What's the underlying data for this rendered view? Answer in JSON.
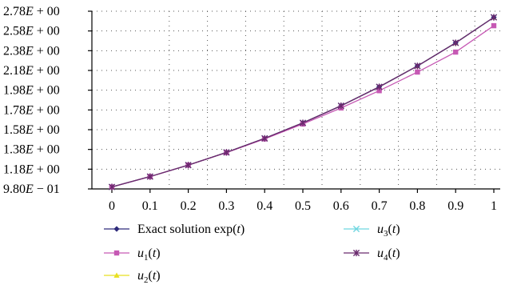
{
  "chart_data": {
    "type": "line",
    "x": [
      0,
      0.1,
      0.2,
      0.3,
      0.4,
      0.5,
      0.6,
      0.7,
      0.8,
      0.9,
      1
    ],
    "x_tick_labels": [
      "0",
      "0.1",
      "0.2",
      "0.3",
      "0.4",
      "0.5",
      "0.6",
      "0.7",
      "0.8",
      "0.9",
      "1"
    ],
    "y_tick_values": [
      0.98,
      1.18,
      1.38,
      1.58,
      1.78,
      1.98,
      2.18,
      2.38,
      2.58,
      2.78
    ],
    "y_tick_labels": [
      "9.80E − 01",
      "1.18E + 00",
      "1.38E + 00",
      "1.58E + 00",
      "1.78E + 00",
      "1.98E + 00",
      "2.18E + 00",
      "2.38E + 00",
      "2.58E + 00",
      "2.78E + 00"
    ],
    "ylim": [
      0.98,
      2.78
    ],
    "xlim": [
      0,
      1
    ],
    "grid": true,
    "legend_position": "bottom",
    "series": [
      {
        "name": "Exact solution exp(t)",
        "color": "#2e2a7a",
        "marker": "diamond",
        "values": [
          1.0,
          1.10517,
          1.2214,
          1.34986,
          1.49182,
          1.64872,
          1.82212,
          2.01375,
          2.22554,
          2.4596,
          2.71828
        ]
      },
      {
        "name": "u1(t)",
        "color": "#c659b4",
        "marker": "square",
        "values": [
          1.0,
          1.105,
          1.221,
          1.3483,
          1.4867,
          1.6375,
          1.8,
          1.975,
          2.1636,
          2.366,
          2.6333
        ]
      },
      {
        "name": "u2(t)",
        "color": "#e8e020",
        "marker": "triangle",
        "values": [
          1.0,
          1.10517,
          1.2214,
          1.34986,
          1.49182,
          1.64872,
          1.82212,
          2.01375,
          2.22554,
          2.4596,
          2.71828
        ]
      },
      {
        "name": "u3(t)",
        "color": "#6fd6e0",
        "marker": "x",
        "values": [
          1.0,
          1.10517,
          1.2214,
          1.34986,
          1.49182,
          1.64872,
          1.82212,
          2.01375,
          2.22554,
          2.4596,
          2.71828
        ]
      },
      {
        "name": "u4(t)",
        "color": "#6a2a6e",
        "marker": "star",
        "values": [
          1.0,
          1.10517,
          1.2214,
          1.34986,
          1.49182,
          1.64872,
          1.82212,
          2.01375,
          2.22554,
          2.4596,
          2.71828
        ]
      }
    ]
  },
  "legend": {
    "items": [
      {
        "main": "Exact solution exp(",
        "var": "t",
        "tail": ")",
        "sub": ""
      },
      {
        "main": "",
        "var": "u",
        "sub": "1",
        "paren": "(",
        "var2": "t",
        "tail": ")"
      },
      {
        "main": "",
        "var": "u",
        "sub": "2",
        "paren": "(",
        "var2": "t",
        "tail": ")"
      },
      {
        "main": "",
        "var": "u",
        "sub": "3",
        "paren": "(",
        "var2": "t",
        "tail": ")"
      },
      {
        "main": "",
        "var": "u",
        "sub": "4",
        "paren": "(",
        "var2": "t",
        "tail": ")"
      }
    ]
  }
}
